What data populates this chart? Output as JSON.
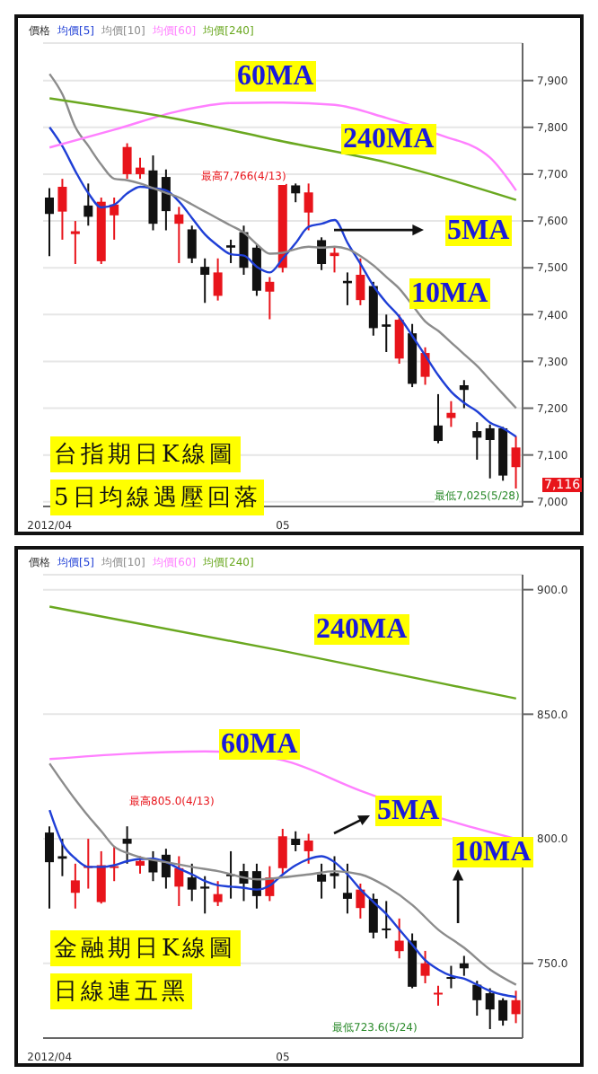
{
  "chart_data": [
    {
      "type": "candlestick",
      "title": "台指期日K線圖",
      "subtitle": "5日均線遇壓回落",
      "legend_title": "價格",
      "legend": "top left",
      "grid": "y",
      "categories": [
        "2012/04",
        null,
        null,
        null,
        null,
        null,
        null,
        null,
        null,
        null,
        null,
        null,
        null,
        null,
        null,
        null,
        null,
        null,
        "05",
        null,
        null,
        null,
        null,
        null,
        null,
        null,
        null,
        null,
        null,
        null,
        null,
        null,
        null,
        null,
        null,
        null,
        null
      ],
      "ohlc": [
        [
          7650,
          7670,
          7525,
          7615
        ],
        [
          7620,
          7690,
          7560,
          7673
        ],
        [
          7572,
          7600,
          7508,
          7578
        ],
        [
          7633,
          7680,
          7590,
          7609
        ],
        [
          7514,
          7650,
          7508,
          7641
        ],
        [
          7612,
          7650,
          7560,
          7635
        ],
        [
          7700,
          7766,
          7690,
          7758
        ],
        [
          7700,
          7735,
          7690,
          7714
        ],
        [
          7708,
          7740,
          7580,
          7594
        ],
        [
          7694,
          7710,
          7580,
          7621
        ],
        [
          7594,
          7630,
          7510,
          7614
        ],
        [
          7582,
          7590,
          7510,
          7520
        ],
        [
          7502,
          7520,
          7425,
          7485
        ],
        [
          7440,
          7520,
          7430,
          7490
        ],
        [
          7548,
          7560,
          7510,
          7543
        ],
        [
          7576,
          7590,
          7485,
          7500
        ],
        [
          7543,
          7550,
          7440,
          7451
        ],
        [
          7449,
          7480,
          7390,
          7470
        ],
        [
          7500,
          7682,
          7490,
          7679
        ],
        [
          7676,
          7680,
          7640,
          7659
        ],
        [
          7618,
          7680,
          7580,
          7661
        ],
        [
          7559,
          7565,
          7495,
          7508
        ],
        [
          7525,
          7545,
          7490,
          7532
        ],
        [
          7472,
          7490,
          7420,
          7467
        ],
        [
          7431,
          7520,
          7420,
          7485
        ],
        [
          7461,
          7470,
          7355,
          7371
        ],
        [
          7379,
          7400,
          7320,
          7374
        ],
        [
          7306,
          7400,
          7295,
          7389
        ],
        [
          7360,
          7380,
          7245,
          7252
        ],
        [
          7267,
          7330,
          7250,
          7318
        ],
        [
          7163,
          7230,
          7125,
          7130
        ],
        [
          7179,
          7215,
          7160,
          7190
        ],
        [
          7249,
          7260,
          7200,
          7239
        ],
        [
          7151,
          7170,
          7090,
          7137
        ],
        [
          7157,
          7165,
          7050,
          7132
        ],
        [
          7157,
          7160,
          7045,
          7056
        ],
        [
          7074,
          7140,
          7025,
          7116
        ]
      ],
      "colors": [
        "#111111",
        "#e8141b",
        "#e8141b",
        "#111111",
        "#e8141b",
        "#e8141b",
        "#e8141b",
        "#e8141b",
        "#111111",
        "#111111",
        "#e8141b",
        "#111111",
        "#111111",
        "#e8141b",
        "#111111",
        "#111111",
        "#111111",
        "#e8141b",
        "#e8141b",
        "#111111",
        "#e8141b",
        "#111111",
        "#e8141b",
        "#111111",
        "#e8141b",
        "#111111",
        "#111111",
        "#e8141b",
        "#111111",
        "#e8141b",
        "#111111",
        "#e8141b",
        "#111111",
        "#111111",
        "#111111",
        "#111111",
        "#e8141b"
      ],
      "series": [
        {
          "name": "均價[5]",
          "type": "line",
          "color": "#1f3fd6",
          "values": [
            7800,
            7759,
            7706,
            7659,
            7629,
            7635,
            7659,
            7673,
            7670,
            7665,
            7641,
            7606,
            7571,
            7547,
            7529,
            7526,
            7502,
            7490,
            7520,
            7553,
            7588,
            7594,
            7602,
            7553,
            7508,
            7461,
            7425,
            7395,
            7354,
            7312,
            7270,
            7235,
            7211,
            7193,
            7169,
            7157,
            7139
          ]
        },
        {
          "name": "均價[10]",
          "type": "line",
          "color": "#8c8c8c",
          "values": [
            7914,
            7870,
            7800,
            7760,
            7720,
            7690,
            7687,
            7680,
            7670,
            7660,
            7650,
            7635,
            7620,
            7605,
            7590,
            7575,
            7550,
            7530,
            7532,
            7540,
            7545,
            7543,
            7545,
            7540,
            7525,
            7505,
            7480,
            7455,
            7420,
            7385,
            7365,
            7340,
            7315,
            7290,
            7260,
            7230,
            7200
          ]
        },
        {
          "name": "均價[60]",
          "type": "line",
          "color": "#ff80ff",
          "values": [
            7757,
            null,
            null,
            null,
            null,
            7795,
            null,
            null,
            null,
            null,
            7835,
            null,
            null,
            null,
            7852,
            null,
            null,
            null,
            7853,
            null,
            null,
            null,
            7848,
            null,
            null,
            null,
            7820,
            null,
            null,
            null,
            7785,
            null,
            null,
            null,
            7735,
            null,
            7665
          ]
        },
        {
          "name": "均價[240]",
          "type": "line",
          "color": "#6aa820",
          "values": [
            7862,
            null,
            null,
            null,
            null,
            null,
            null,
            null,
            null,
            null,
            7817,
            null,
            null,
            null,
            null,
            null,
            null,
            null,
            7770,
            null,
            null,
            null,
            null,
            null,
            null,
            null,
            7725,
            null,
            null,
            null,
            null,
            null,
            null,
            null,
            null,
            null,
            7645
          ]
        }
      ],
      "ylim": [
        6990,
        7980
      ],
      "yticks": [
        {
          "value": 7000,
          "label": "7,000"
        },
        {
          "value": 7100,
          "label": "7,100"
        },
        {
          "value": 7200,
          "label": "7,200"
        },
        {
          "value": 7300,
          "label": "7,300"
        },
        {
          "value": 7400,
          "label": "7,400"
        },
        {
          "value": 7500,
          "label": "7,500"
        },
        {
          "value": 7600,
          "label": "7,600"
        },
        {
          "value": 7700,
          "label": "7,700"
        },
        {
          "value": 7800,
          "label": "7,800"
        },
        {
          "value": 7900,
          "label": "7,900"
        }
      ],
      "annotations": [
        "60MA",
        "240MA",
        "5MA",
        "10MA",
        "最高7,766(4/13)",
        "最低7,025(5/28)",
        "7,116"
      ]
    },
    {
      "type": "candlestick",
      "title": "金融期日K線圖",
      "subtitle": "日線連五黑",
      "legend_title": "價格",
      "legend": "top left",
      "grid": "y",
      "categories": [
        "2012/04",
        null,
        null,
        null,
        null,
        null,
        null,
        null,
        null,
        null,
        null,
        null,
        null,
        null,
        null,
        null,
        null,
        null,
        "05",
        null,
        null,
        null,
        null,
        null,
        null,
        null,
        null,
        null,
        null,
        null,
        null,
        null,
        null,
        null,
        null,
        null,
        null
      ],
      "ohlc": [
        [
          802.5,
          805,
          772,
          790.6
        ],
        [
          793,
          800,
          785,
          792
        ],
        [
          778.3,
          790,
          772,
          783.3
        ],
        [
          788.5,
          800,
          780,
          789
        ],
        [
          774.6,
          795,
          774,
          789.4
        ],
        [
          788.5,
          797,
          783,
          789
        ],
        [
          800,
          805,
          790,
          798
        ],
        [
          789.2,
          793,
          786,
          791.1
        ],
        [
          791.9,
          795,
          783,
          786.5
        ],
        [
          793.6,
          796,
          780,
          784.5
        ],
        [
          780.8,
          793,
          773,
          788.2
        ],
        [
          784.5,
          790,
          775,
          779.6
        ],
        [
          780.8,
          785,
          770,
          780
        ],
        [
          774.6,
          783,
          773,
          777.8
        ],
        [
          785.7,
          795,
          776,
          785
        ],
        [
          787,
          790,
          775,
          782
        ],
        [
          787,
          790,
          772,
          777
        ],
        [
          777,
          789,
          775,
          784.5
        ],
        [
          788.2,
          804,
          786,
          801
        ],
        [
          800,
          803,
          795,
          797.5
        ],
        [
          795,
          802,
          790,
          799.3
        ],
        [
          785.7,
          790,
          776,
          782.8
        ],
        [
          786.2,
          793,
          780,
          785
        ],
        [
          778.3,
          790,
          770,
          775.9
        ],
        [
          772.2,
          782,
          768,
          779.6
        ],
        [
          775.9,
          778,
          760,
          762.3
        ],
        [
          764,
          775,
          760,
          763.8
        ],
        [
          754.9,
          768,
          752,
          759.1
        ],
        [
          759.1,
          762,
          740,
          740.6
        ],
        [
          745,
          755,
          742,
          750
        ],
        [
          737.7,
          741,
          733,
          738.2
        ],
        [
          744.5,
          749,
          740,
          744
        ],
        [
          750,
          753,
          745,
          748
        ],
        [
          741.4,
          743,
          729,
          735.2
        ],
        [
          738,
          740,
          723.6,
          731.5
        ],
        [
          735.2,
          736,
          725,
          727
        ],
        [
          729.6,
          739,
          726,
          735.2
        ]
      ],
      "colors": [
        "#111111",
        "#111111",
        "#e8141b",
        "#e8141b",
        "#e8141b",
        "#e8141b",
        "#111111",
        "#e8141b",
        "#111111",
        "#111111",
        "#e8141b",
        "#111111",
        "#111111",
        "#e8141b",
        "#111111",
        "#111111",
        "#111111",
        "#e8141b",
        "#e8141b",
        "#111111",
        "#e8141b",
        "#111111",
        "#111111",
        "#111111",
        "#e8141b",
        "#111111",
        "#111111",
        "#e8141b",
        "#111111",
        "#e8141b",
        "#e8141b",
        "#111111",
        "#111111",
        "#111111",
        "#111111",
        "#111111",
        "#e8141b"
      ],
      "series": [
        {
          "name": "均價[5]",
          "type": "line",
          "color": "#1f3fd6",
          "values": [
            811.5,
            798,
            792,
            788.7,
            788.7,
            789.4,
            791,
            791.9,
            792,
            790.6,
            788,
            785.7,
            783,
            781.3,
            780.8,
            780.3,
            779.6,
            781.3,
            785.7,
            789.4,
            791.9,
            793,
            790.6,
            785.7,
            779.6,
            774.6,
            769.7,
            763.5,
            757.4,
            751.2,
            747.5,
            745,
            743.8,
            741.4,
            738.9,
            737.4,
            736.5
          ]
        },
        {
          "name": "均價[10]",
          "type": "line",
          "color": "#8c8c8c",
          "values": [
            830.2,
            null,
            815.6,
            809,
            803,
            796.8,
            794.3,
            792.6,
            null,
            790.6,
            null,
            788.7,
            null,
            787,
            null,
            null,
            783.7,
            null,
            784.5,
            null,
            785.7,
            null,
            787,
            null,
            785.7,
            null,
            780.8,
            null,
            773.4,
            null,
            763.5,
            null,
            756.2,
            null,
            747.5,
            null,
            741.4
          ]
        },
        {
          "name": "均價[60]",
          "type": "line",
          "color": "#ff80ff",
          "values": [
            832,
            null,
            null,
            null,
            null,
            null,
            null,
            null,
            null,
            null,
            null,
            null,
            835.1,
            null,
            null,
            null,
            null,
            null,
            831.5,
            null,
            null,
            null,
            null,
            null,
            819.3,
            null,
            null,
            null,
            null,
            null,
            null,
            807,
            null,
            null,
            null,
            null,
            800
          ]
        },
        {
          "name": "均價[240]",
          "type": "line",
          "color": "#6aa820",
          "values": [
            893.2,
            null,
            null,
            null,
            null,
            null,
            null,
            null,
            null,
            null,
            null,
            null,
            null,
            null,
            null,
            null,
            null,
            null,
            875.4,
            null,
            null,
            null,
            null,
            null,
            null,
            null,
            null,
            null,
            null,
            null,
            null,
            null,
            null,
            null,
            null,
            null,
            856.3
          ]
        }
      ],
      "ylim": [
        720,
        906
      ],
      "yticks": [
        {
          "value": 750,
          "label": "750.0"
        },
        {
          "value": 800,
          "label": "800.0"
        },
        {
          "value": 850,
          "label": "850.0"
        },
        {
          "value": 900,
          "label": "900.0"
        }
      ],
      "annotations": [
        "240MA",
        "60MA",
        "5MA",
        "10MA",
        "最高805.0(4/13)",
        "最低723.6(5/24)"
      ]
    }
  ]
}
